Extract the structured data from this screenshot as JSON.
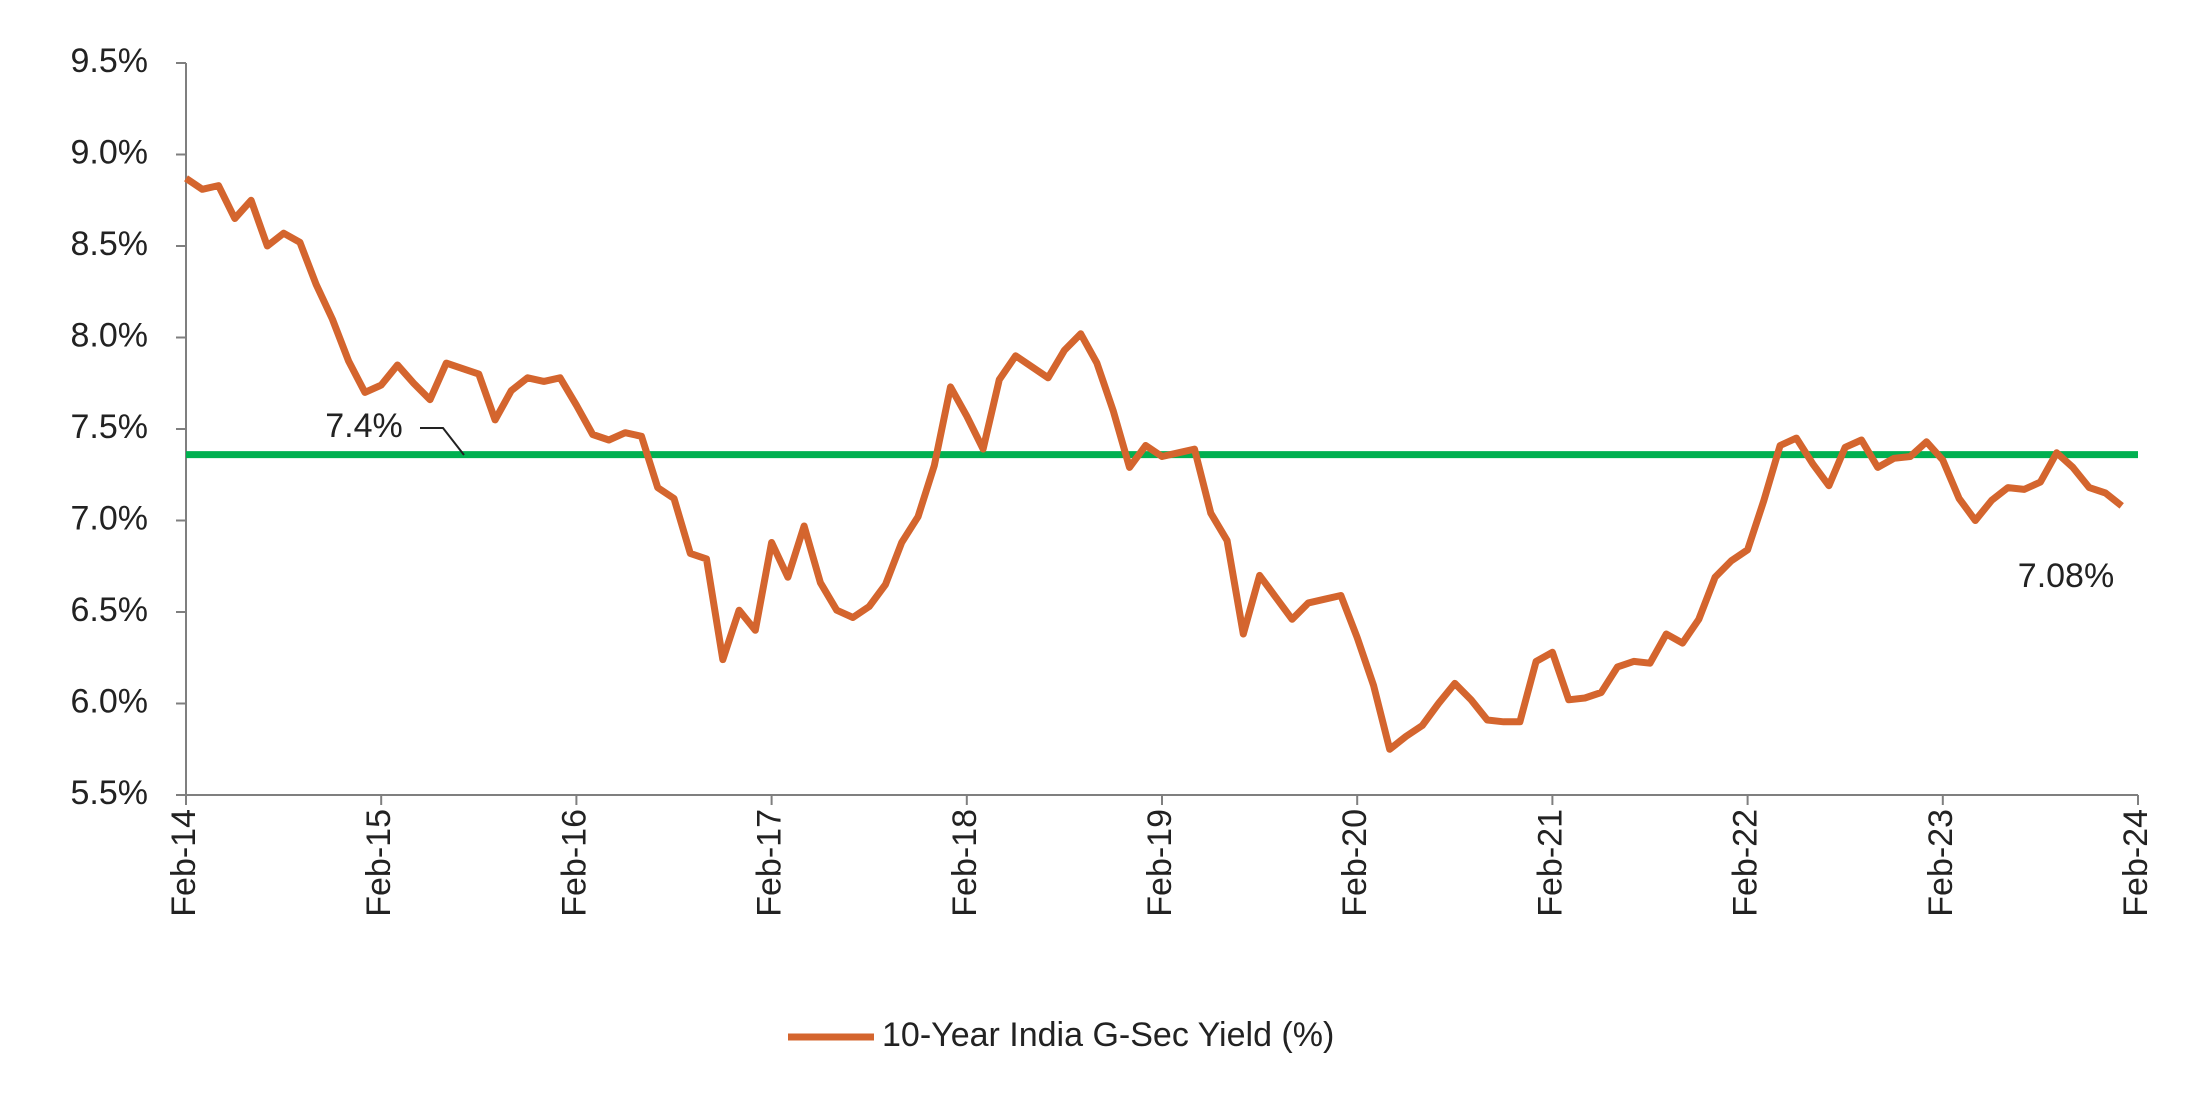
{
  "chart_data": {
    "type": "line",
    "categories": [
      "Feb-14",
      null,
      null,
      null,
      null,
      null,
      null,
      null,
      null,
      null,
      null,
      null,
      "Feb-15",
      null,
      null,
      null,
      null,
      null,
      null,
      null,
      null,
      null,
      null,
      null,
      "Feb-16",
      null,
      null,
      null,
      null,
      null,
      null,
      null,
      null,
      null,
      null,
      null,
      "Feb-17",
      null,
      null,
      null,
      null,
      null,
      null,
      null,
      null,
      null,
      null,
      null,
      "Feb-18",
      null,
      null,
      null,
      null,
      null,
      null,
      null,
      null,
      null,
      null,
      null,
      "Feb-19",
      null,
      null,
      null,
      null,
      null,
      null,
      null,
      null,
      null,
      null,
      null,
      "Feb-20",
      null,
      null,
      null,
      null,
      null,
      null,
      null,
      null,
      null,
      null,
      null,
      "Feb-21",
      null,
      null,
      null,
      null,
      null,
      null,
      null,
      null,
      null,
      null,
      null,
      "Feb-22",
      null,
      null,
      null,
      null,
      null,
      null,
      null,
      null,
      null,
      null,
      null,
      "Feb-23",
      null,
      null,
      null,
      null,
      null,
      null,
      null,
      null,
      null,
      null,
      null,
      "Feb-24"
    ],
    "series": [
      {
        "name": "10-Year India G-Sec Yield (%)",
        "color": "#d4652e",
        "values": [
          8.87,
          8.81,
          8.83,
          8.65,
          8.75,
          8.5,
          8.57,
          8.52,
          8.29,
          8.1,
          7.87,
          7.7,
          7.74,
          7.85,
          7.75,
          7.66,
          7.86,
          7.83,
          7.8,
          7.55,
          7.71,
          7.78,
          7.76,
          7.78,
          7.63,
          7.47,
          7.44,
          7.48,
          7.46,
          7.18,
          7.12,
          6.82,
          6.79,
          6.24,
          6.51,
          6.4,
          6.88,
          6.69,
          6.97,
          6.66,
          6.51,
          6.47,
          6.53,
          6.65,
          6.88,
          7.02,
          7.3,
          7.73,
          7.57,
          7.39,
          7.77,
          7.9,
          7.84,
          7.78,
          7.93,
          8.02,
          7.86,
          7.6,
          7.29,
          7.41,
          7.35,
          7.37,
          7.39,
          7.04,
          6.89,
          6.38,
          6.7,
          6.58,
          6.46,
          6.55,
          6.57,
          6.59,
          6.36,
          6.1,
          5.75,
          5.82,
          5.88,
          6.0,
          6.11,
          6.02,
          5.91,
          5.9,
          5.9,
          6.23,
          6.28,
          6.02,
          6.03,
          6.06,
          6.2,
          6.23,
          6.22,
          6.38,
          6.33,
          6.46,
          6.69,
          6.78,
          6.84,
          7.11,
          7.41,
          7.45,
          7.31,
          7.19,
          7.4,
          7.44,
          7.29,
          7.34,
          7.35,
          7.43,
          7.33,
          7.12,
          7.0,
          7.11,
          7.18,
          7.17,
          7.21,
          7.37,
          7.29,
          7.18,
          7.15,
          7.08,
          null
        ]
      }
    ],
    "reference_line": {
      "value": 7.36,
      "label": "7.4%",
      "color": "#00b050"
    },
    "end_annotation": {
      "value": 7.08,
      "label": "7.08%"
    },
    "ylim": [
      5.5,
      9.5
    ],
    "yticks": [
      {
        "value": 5.5,
        "label": "5.5%"
      },
      {
        "value": 6.0,
        "label": "6.0%"
      },
      {
        "value": 6.5,
        "label": "6.5%"
      },
      {
        "value": 7.0,
        "label": "7.0%"
      },
      {
        "value": 7.5,
        "label": "7.5%"
      },
      {
        "value": 8.0,
        "label": "8.0%"
      },
      {
        "value": 8.5,
        "label": "8.5%"
      },
      {
        "value": 9.0,
        "label": "9.0%"
      },
      {
        "value": 9.5,
        "label": "9.5%"
      }
    ],
    "grid": false,
    "legend": "bottom"
  }
}
